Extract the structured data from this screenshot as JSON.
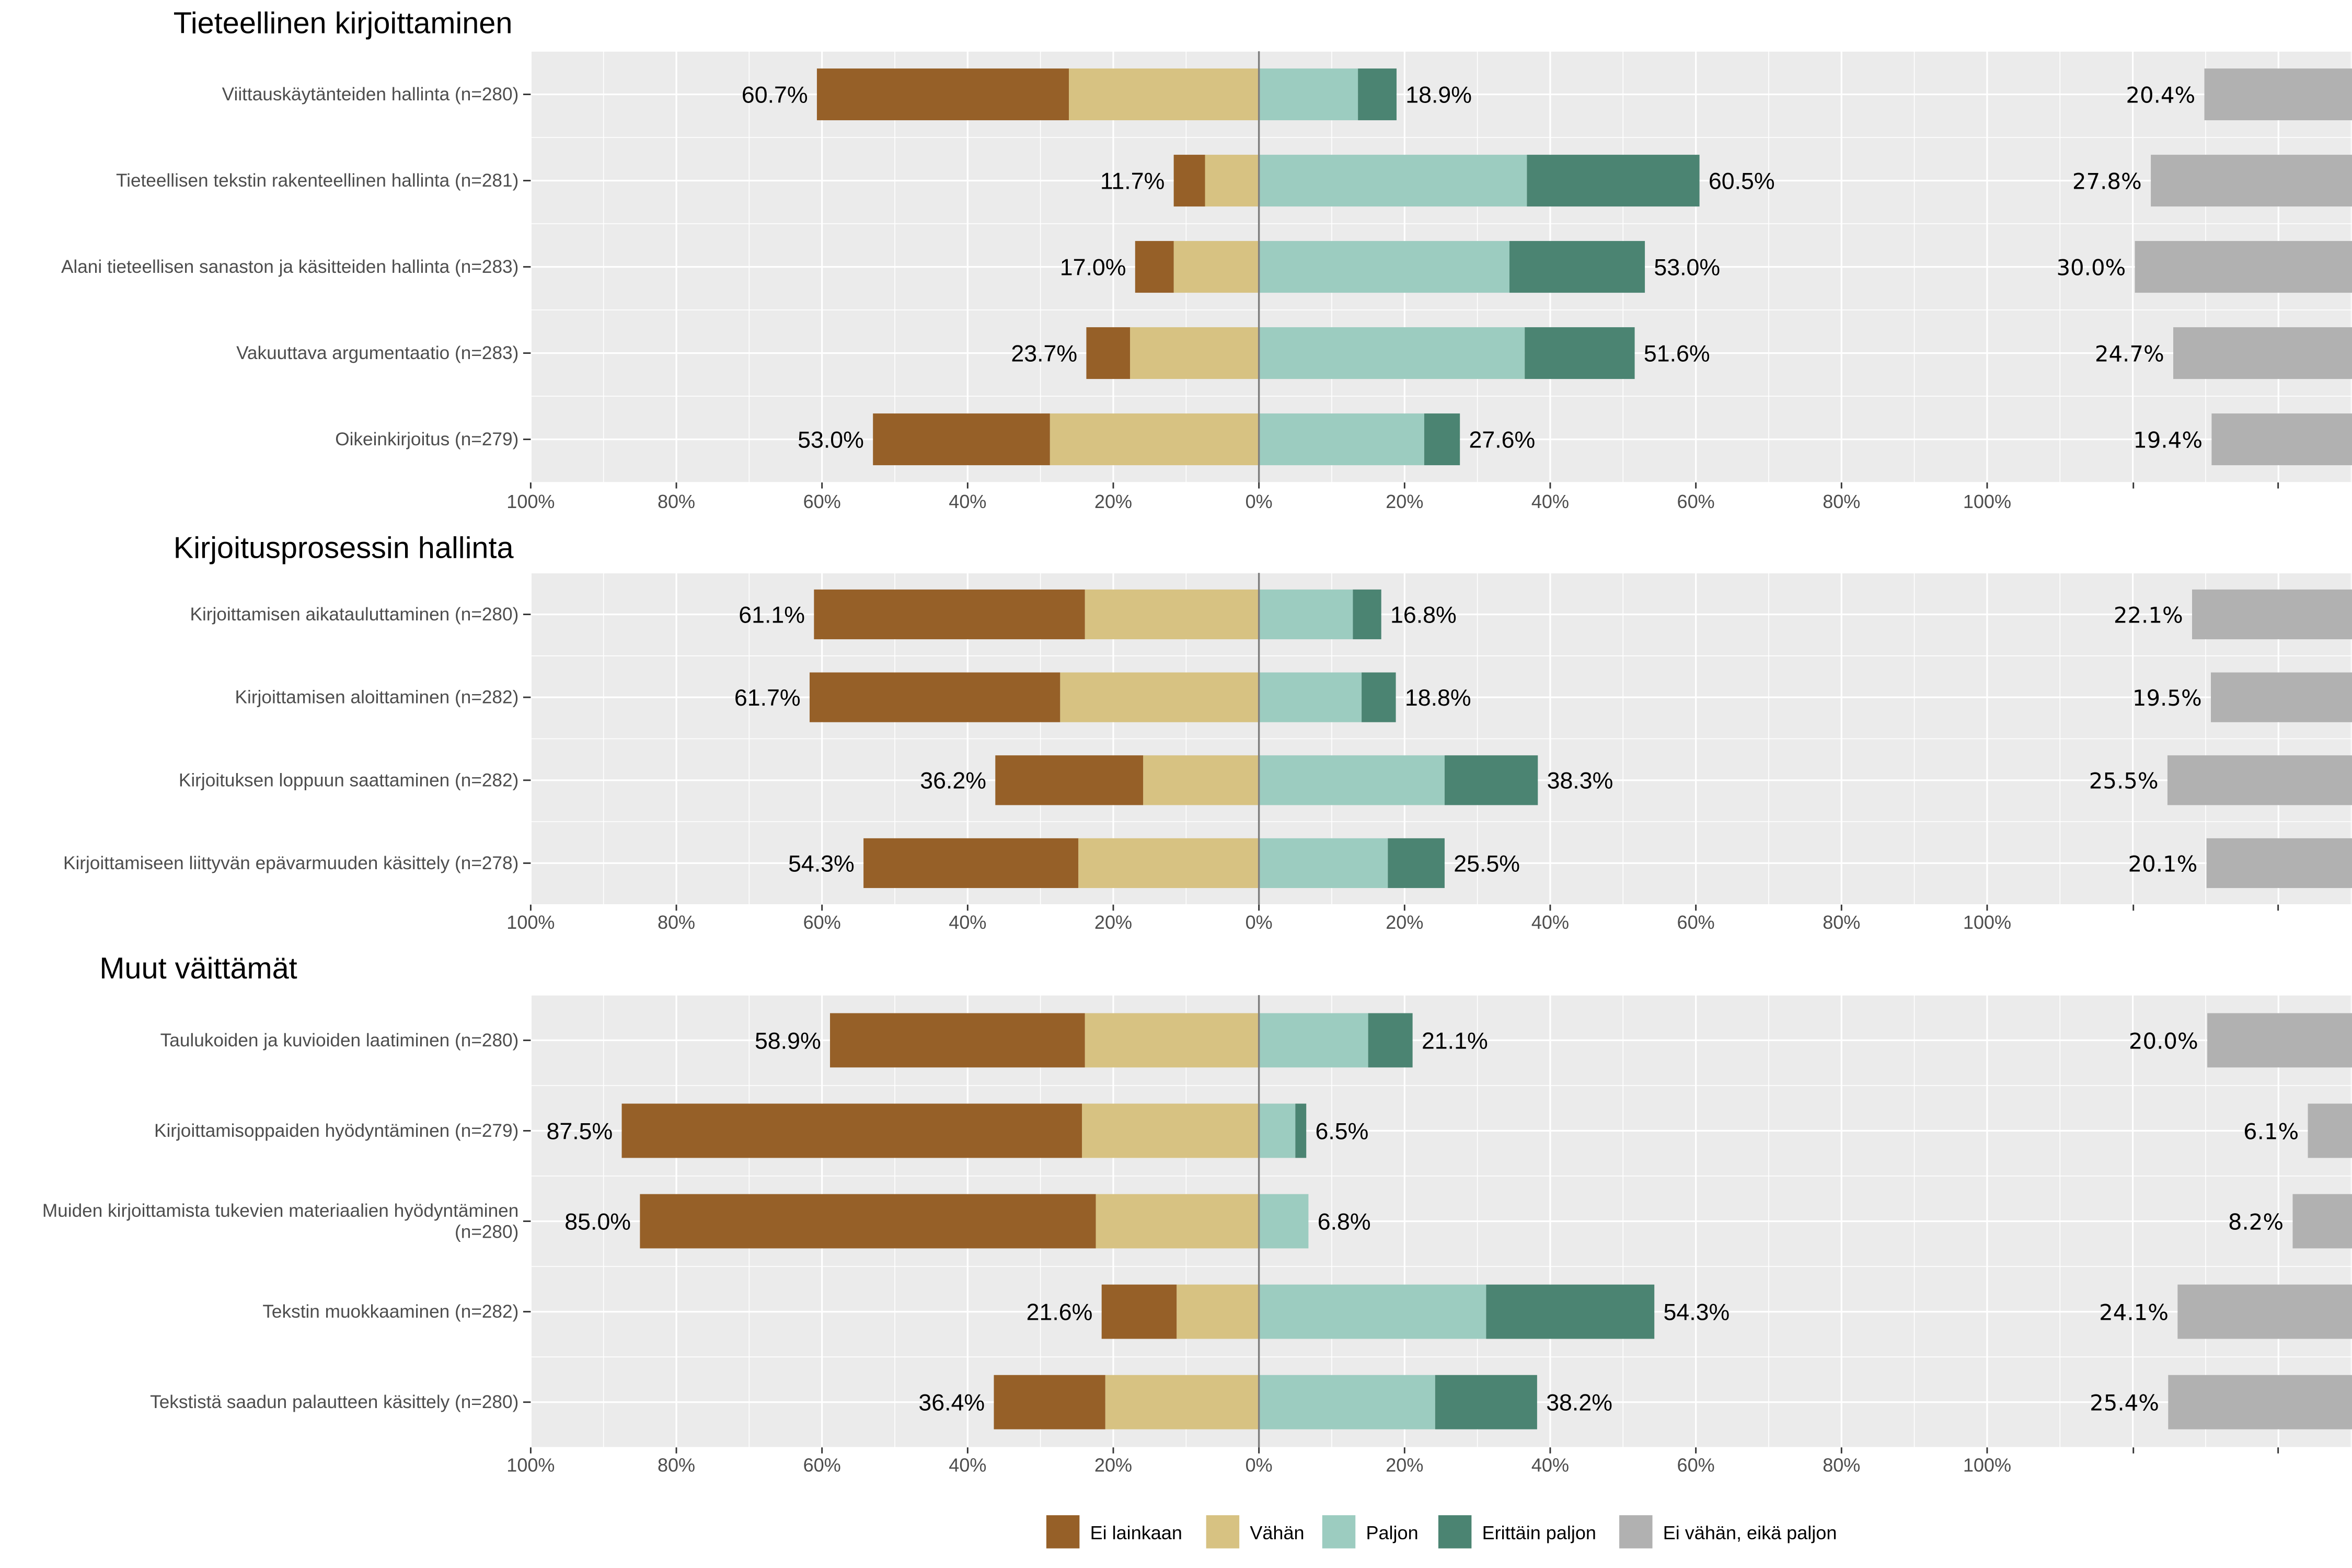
{
  "chart_data": {
    "type": "bar",
    "subtype": "diverging-stacked-likert",
    "xlim": [
      -100,
      100
    ],
    "x_ticks": [
      "100%",
      "80%",
      "60%",
      "40%",
      "20%",
      "0%",
      "20%",
      "40%",
      "60%",
      "80%",
      "100%"
    ],
    "grid": true,
    "legend_position": "bottom",
    "legend": [
      {
        "key": "ei_lainkaan",
        "label": "Ei lainkaan",
        "color": "#966028"
      },
      {
        "key": "vahan",
        "label": "Vähän",
        "color": "#D7C282"
      },
      {
        "key": "paljon",
        "label": "Paljon",
        "color": "#9CCCC0"
      },
      {
        "key": "erittain_paljon",
        "label": "Erittäin paljon",
        "color": "#4B8472"
      },
      {
        "key": "neutral",
        "label": "Ei vähän, eikä paljon",
        "color": "#B1B1B1"
      }
    ],
    "panels": [
      {
        "title": "Tieteellinen kirjoittaminen",
        "items": [
          {
            "label": "Viittauskäytänteiden hallinta (n=280)",
            "ei_lainkaan": 34.6,
            "vahan": 26.1,
            "paljon": 13.6,
            "erittain_paljon": 5.3,
            "neutral": 20.4,
            "neg_label": "60.7%",
            "pos_label": "18.9%",
            "neutral_label": "20.4%"
          },
          {
            "label": "Tieteellisen tekstin rakenteellinen hallinta (n=281)",
            "ei_lainkaan": 4.3,
            "vahan": 7.4,
            "paljon": 36.8,
            "erittain_paljon": 23.7,
            "neutral": 27.8,
            "neg_label": "11.7%",
            "pos_label": "60.5%",
            "neutral_label": "27.8%"
          },
          {
            "label": "Alani tieteellisen sanaston ja käsitteiden hallinta (n=283)",
            "ei_lainkaan": 5.3,
            "vahan": 11.7,
            "paljon": 34.4,
            "erittain_paljon": 18.6,
            "neutral": 30.0,
            "neg_label": "17.0%",
            "pos_label": "53.0%",
            "neutral_label": "30.0%"
          },
          {
            "label": "Vakuuttava argumentaatio (n=283)",
            "ei_lainkaan": 6.0,
            "vahan": 17.7,
            "paljon": 36.5,
            "erittain_paljon": 15.1,
            "neutral": 24.7,
            "neg_label": "23.7%",
            "pos_label": "51.6%",
            "neutral_label": "24.7%"
          },
          {
            "label": "Oikeinkirjoitus (n=279)",
            "ei_lainkaan": 24.3,
            "vahan": 28.7,
            "paljon": 22.7,
            "erittain_paljon": 4.9,
            "neutral": 19.4,
            "neg_label": "53.0%",
            "pos_label": "27.6%",
            "neutral_label": "19.4%"
          }
        ]
      },
      {
        "title": "Kirjoitusprosessin hallinta",
        "items": [
          {
            "label": "Kirjoittamisen aikatauluttaminen (n=280)",
            "ei_lainkaan": 37.2,
            "vahan": 23.9,
            "paljon": 12.9,
            "erittain_paljon": 3.9,
            "neutral": 22.1,
            "neg_label": "61.1%",
            "pos_label": "16.8%",
            "neutral_label": "22.1%"
          },
          {
            "label": "Kirjoittamisen aloittaminen (n=282)",
            "ei_lainkaan": 34.4,
            "vahan": 27.3,
            "paljon": 14.1,
            "erittain_paljon": 4.7,
            "neutral": 19.5,
            "neg_label": "61.7%",
            "pos_label": "18.8%",
            "neutral_label": "19.5%"
          },
          {
            "label": "Kirjoituksen loppuun saattaminen (n=282)",
            "ei_lainkaan": 20.3,
            "vahan": 15.9,
            "paljon": 25.5,
            "erittain_paljon": 12.8,
            "neutral": 25.5,
            "neg_label": "36.2%",
            "pos_label": "38.3%",
            "neutral_label": "25.5%"
          },
          {
            "label": "Kirjoittamiseen liittyvän epävarmuuden käsittely (n=278)",
            "ei_lainkaan": 29.5,
            "vahan": 24.8,
            "paljon": 17.7,
            "erittain_paljon": 7.8,
            "neutral": 20.1,
            "neg_label": "54.3%",
            "pos_label": "25.5%",
            "neutral_label": "20.1%"
          }
        ]
      },
      {
        "title": "Muut väittämät",
        "items": [
          {
            "label": "Taulukoiden ja kuvioiden laatiminen (n=280)",
            "ei_lainkaan": 35.0,
            "vahan": 23.9,
            "paljon": 15.0,
            "erittain_paljon": 6.1,
            "neutral": 20.0,
            "neg_label": "58.9%",
            "pos_label": "21.1%",
            "neutral_label": "20.0%"
          },
          {
            "label": "Kirjoittamisoppaiden hyödyntäminen (n=279)",
            "ei_lainkaan": 63.2,
            "vahan": 24.3,
            "paljon": 5.0,
            "erittain_paljon": 1.5,
            "neutral": 6.1,
            "neg_label": "87.5%",
            "pos_label": "6.5%",
            "neutral_label": "6.1%"
          },
          {
            "label": "Muiden kirjoittamista tukevien materiaalien hyödyntäminen (n=280)",
            "label_lines": [
              "Muiden kirjoittamista tukevien materiaalien hyödyntäminen",
              "(n=280)"
            ],
            "ei_lainkaan": 62.6,
            "vahan": 22.4,
            "paljon": 6.8,
            "erittain_paljon": 0.0,
            "neutral": 8.2,
            "neg_label": "85.0%",
            "pos_label": "6.8%",
            "neutral_label": "8.2%"
          },
          {
            "label": "Tekstin muokkaaminen (n=282)",
            "ei_lainkaan": 10.3,
            "vahan": 11.3,
            "paljon": 31.2,
            "erittain_paljon": 23.1,
            "neutral": 24.1,
            "neg_label": "21.6%",
            "pos_label": "54.3%",
            "neutral_label": "24.1%"
          },
          {
            "label": "Tekstistä saadun palautteen käsittely (n=280)",
            "ei_lainkaan": 15.3,
            "vahan": 21.1,
            "paljon": 24.2,
            "erittain_paljon": 14.0,
            "neutral": 25.4,
            "neg_label": "36.4%",
            "pos_label": "38.2%",
            "neutral_label": "25.4%"
          }
        ]
      }
    ]
  }
}
